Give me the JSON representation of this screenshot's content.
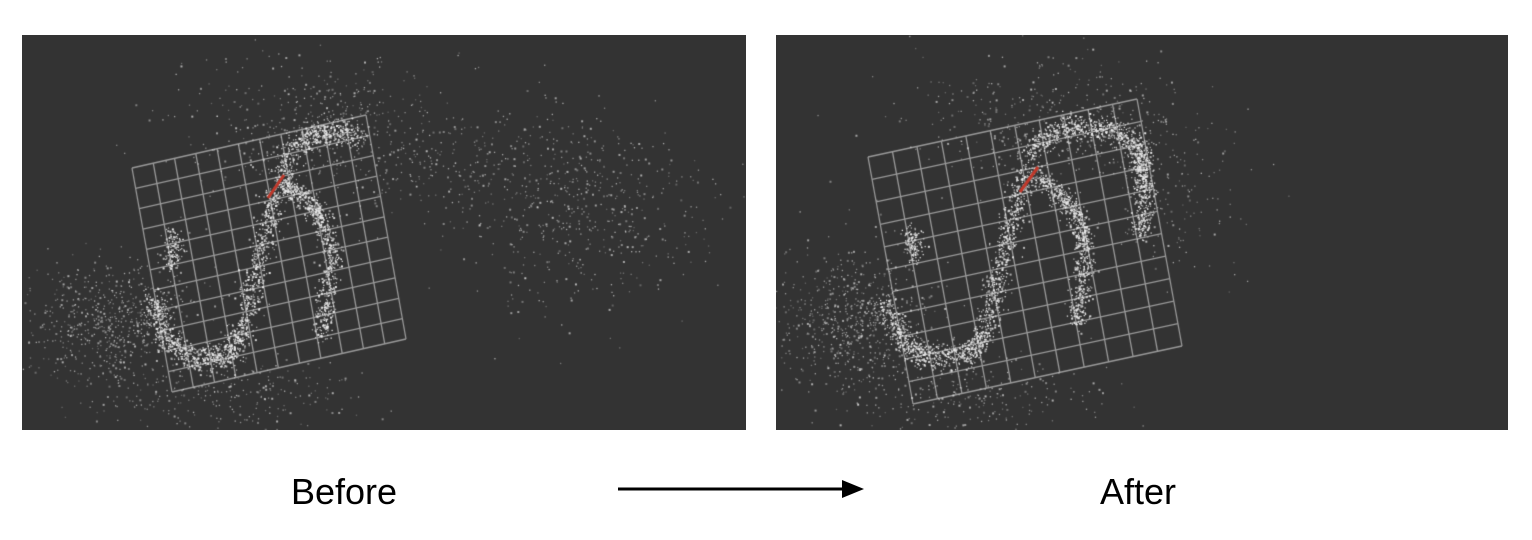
{
  "labels": {
    "before": "Before",
    "after": "After"
  },
  "colors": {
    "page_background": "#ffffff",
    "viewport_background": "#333333",
    "grid_lines": "#9a9a9a",
    "points": "#e6e6e6",
    "axis_marker": "#c0392b",
    "arrow": "#000000"
  },
  "icons": {
    "transition": "right-arrow-icon"
  }
}
